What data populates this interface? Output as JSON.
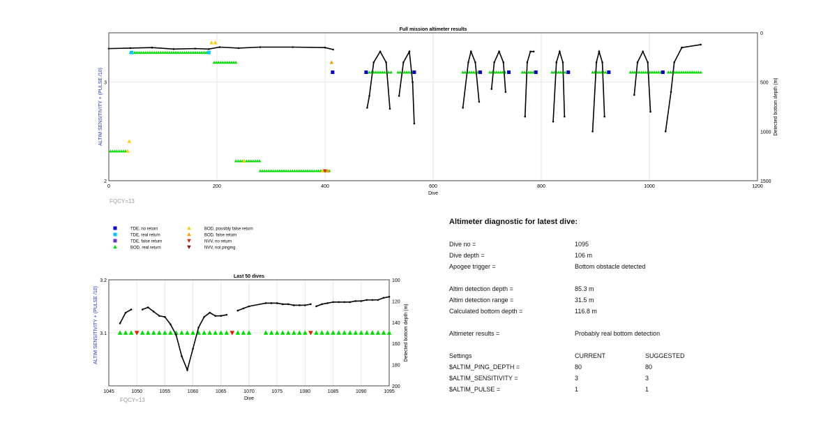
{
  "main_chart": {
    "title": "Full mission altimeter results",
    "xlabel": "Dive",
    "ylabel_left": "ALTIM SENSITIVITY + (PULSE /10)",
    "ylabel_right": "Detected bottom depth (m)",
    "x_ticks": [
      "0",
      "200",
      "400",
      "600",
      "800",
      "1000",
      "1200"
    ],
    "y_left_ticks": [
      "3",
      "2"
    ],
    "y_right_ticks": [
      "0",
      "500",
      "1000",
      "1500"
    ],
    "fqcy_label": "FQCY=13"
  },
  "legend": {
    "items": [
      {
        "label": "TDE, no return",
        "color": "#0000cc",
        "shape": "square"
      },
      {
        "label": "TDE, real return",
        "color": "#00c8ff",
        "shape": "square"
      },
      {
        "label": "TDE, false return",
        "color": "#6633cc",
        "shape": "square"
      },
      {
        "label": "BOD, real return",
        "color": "#00dd00",
        "shape": "triangle-up"
      },
      {
        "label": "BOD, possibly false return",
        "color": "#ffcc00",
        "shape": "triangle-up"
      },
      {
        "label": "BOD, false return",
        "color": "#ff9900",
        "shape": "triangle-up"
      },
      {
        "label": "NVV, no return",
        "color": "#dd2200",
        "shape": "triangle-down"
      },
      {
        "label": "NVV, not pinging",
        "color": "#881100",
        "shape": "triangle-down"
      }
    ]
  },
  "last50_chart": {
    "title": "Last 50 dives",
    "xlabel": "Dive",
    "ylabel_left": "ALTIM SENSITIVITY + (PULSE /10)",
    "ylabel_right": "Detected bottom depth (m)",
    "x_ticks": [
      "1045",
      "1050",
      "1055",
      "1060",
      "1065",
      "1070",
      "1075",
      "1080",
      "1085",
      "1090",
      "1095"
    ],
    "y_left_ticks": [
      "3.2",
      "3.1"
    ],
    "y_right_ticks": [
      "100",
      "120",
      "140",
      "160",
      "180",
      "200"
    ],
    "fqcy_label": "FQCY=13"
  },
  "diagnostic": {
    "title": "Altimeter diagnostic for latest dive:",
    "rows": [
      {
        "k": "Dive no =",
        "v": "1095"
      },
      {
        "k": "Dive depth =",
        "v": "106 m"
      },
      {
        "k": "Apogee trigger =",
        "v": "Bottom obstacle detected"
      },
      {
        "k": "Altim detection depth =",
        "v": "85.3 m"
      },
      {
        "k": "Altim detection range =",
        "v": "31.5 m"
      },
      {
        "k": "Calculated bottom depth =",
        "v": "116.8 m"
      },
      {
        "k": "Altimeter results =",
        "v": "Probably real bottom detection"
      }
    ],
    "settings": {
      "header": {
        "k": "Settings",
        "current": "CURRENT",
        "suggested": "SUGGESTED"
      },
      "rows": [
        {
          "k": "$ALTIM_PING_DEPTH =",
          "current": "80",
          "suggested": "80"
        },
        {
          "k": "$ALTIM_SENSITIVITY =",
          "current": "3",
          "suggested": "3"
        },
        {
          "k": "$ALTIM_PULSE =",
          "current": "1",
          "suggested": "1"
        }
      ]
    }
  },
  "chart_data": [
    {
      "type": "scatter",
      "title": "Full mission altimeter results",
      "xlabel": "Dive",
      "ylabel": "ALTIM SENSITIVITY + (PULSE /10)",
      "y2label": "Detected bottom depth (m)",
      "xlim": [
        0,
        1200
      ],
      "ylim": [
        2,
        3.5
      ],
      "y2lim": [
        1500,
        0
      ],
      "grid": true,
      "series": [
        {
          "name": "BOD, real return",
          "color": "#00dd00",
          "marker": "triangle-up",
          "segments": [
            [
              3,
              32,
              2.3
            ],
            [
              40,
              185,
              3.3
            ],
            [
              195,
              235,
              3.2
            ],
            [
              235,
              280,
              2.2
            ],
            [
              280,
              410,
              2.1
            ],
            [
              478,
              525,
              3.1
            ],
            [
              535,
              565,
              3.1
            ],
            [
              655,
              685,
              3.1
            ],
            [
              705,
              735,
              3.1
            ],
            [
              765,
              790,
              3.1
            ],
            [
              820,
              850,
              3.1
            ],
            [
              895,
              925,
              3.1
            ],
            [
              965,
              1025,
              3.1
            ],
            [
              1035,
              1095,
              3.1
            ]
          ]
        },
        {
          "name": "BOD, possibly false return",
          "color": "#ffcc00",
          "marker": "triangle-up",
          "points": [
            [
              38,
              2.4
            ],
            [
              190,
              3.4
            ],
            [
              197,
              3.4
            ],
            [
              35,
              2.3
            ],
            [
              250,
              2.2
            ],
            [
              395,
              2.1
            ]
          ]
        },
        {
          "name": "BOD, false return",
          "color": "#ff9900",
          "marker": "triangle-up",
          "points": [
            [
              412,
              3.2
            ],
            [
              405,
              2.1
            ]
          ]
        },
        {
          "name": "TDE, no return",
          "color": "#0000cc",
          "marker": "square",
          "points": [
            [
              414,
              3.1
            ],
            [
              476,
              3.1
            ],
            [
              565,
              3.1
            ],
            [
              687,
              3.1
            ],
            [
              740,
              3.1
            ],
            [
              790,
              3.1
            ],
            [
              850,
              3.1
            ],
            [
              925,
              3.1
            ],
            [
              1025,
              3.1
            ]
          ]
        },
        {
          "name": "TDE, real return",
          "color": "#00c8ff",
          "marker": "square",
          "points": [
            [
              42,
              3.3
            ],
            [
              185,
              3.3
            ]
          ]
        },
        {
          "name": "NVV, no return",
          "color": "#dd2200",
          "marker": "triangle-down",
          "points": [
            [
              400,
              2.1
            ]
          ]
        },
        {
          "name": "Detected bottom depth (m)",
          "axis": "right",
          "color": "#000000",
          "marker": "dot",
          "segments_xy": [
            [
              [
                0,
                160
              ],
              [
                40,
                155
              ],
              [
                80,
                150
              ],
              [
                120,
                165
              ],
              [
                160,
                160
              ],
              [
                185,
                165
              ],
              [
                205,
                145
              ],
              [
                240,
                155
              ],
              [
                280,
                145
              ],
              [
                340,
                145
              ],
              [
                400,
                150
              ],
              [
                415,
                170
              ]
            ],
            [
              [
                478,
                760
              ],
              [
                482,
                640
              ],
              [
                490,
                300
              ],
              [
                502,
                190
              ],
              [
                513,
                300
              ],
              [
                520,
                770
              ]
            ],
            [
              [
                537,
                640
              ],
              [
                545,
                300
              ],
              [
                556,
                190
              ],
              [
                562,
                500
              ],
              [
                565,
                920
              ]
            ],
            [
              [
                655,
                760
              ],
              [
                665,
                300
              ],
              [
                670,
                190
              ],
              [
                678,
                300
              ],
              [
                685,
                700
              ]
            ],
            [
              [
                708,
                570
              ],
              [
                713,
                300
              ],
              [
                722,
                190
              ],
              [
                730,
                300
              ],
              [
                734,
                600
              ]
            ],
            [
              [
                770,
                850
              ],
              [
                774,
                300
              ],
              [
                780,
                190
              ],
              [
                786,
                190
              ]
            ],
            [
              [
                822,
                900
              ],
              [
                828,
                300
              ],
              [
                834,
                190
              ],
              [
                840,
                300
              ],
              [
                843,
                850
              ]
            ],
            [
              [
                895,
                1000
              ],
              [
                902,
                300
              ],
              [
                907,
                190
              ],
              [
                913,
                300
              ],
              [
                917,
                850
              ]
            ],
            [
              [
                972,
                630
              ],
              [
                978,
                300
              ],
              [
                988,
                190
              ],
              [
                997,
                300
              ],
              [
                1002,
                800
              ]
            ],
            [
              [
                1030,
                1000
              ],
              [
                1040,
                600
              ],
              [
                1046,
                300
              ],
              [
                1060,
                150
              ],
              [
                1095,
                120
              ]
            ]
          ]
        }
      ]
    },
    {
      "type": "scatter",
      "title": "Last 50 dives",
      "xlabel": "Dive",
      "ylabel": "ALTIM SENSITIVITY + (PULSE /10)",
      "y2label": "Detected bottom depth (m)",
      "xlim": [
        1045,
        1095
      ],
      "ylim": [
        3.0,
        3.2
      ],
      "y2lim": [
        200,
        100
      ],
      "grid": true,
      "series": [
        {
          "name": "BOD, real return",
          "color": "#00dd00",
          "marker": "triangle-up",
          "x": [
            1047,
            1048,
            1049,
            1051,
            1052,
            1053,
            1054,
            1055,
            1056,
            1057,
            1058,
            1059,
            1060,
            1061,
            1062,
            1063,
            1064,
            1065,
            1066,
            1068,
            1069,
            1070,
            1073,
            1074,
            1075,
            1076,
            1077,
            1078,
            1079,
            1080,
            1082,
            1083,
            1084,
            1085,
            1086,
            1087,
            1088,
            1089,
            1090,
            1091,
            1092,
            1093,
            1094,
            1095
          ],
          "y": 3.1
        },
        {
          "name": "NVV, no return",
          "color": "#dd2200",
          "marker": "triangle-down",
          "x": [
            1050,
            1067,
            1081
          ],
          "y": 3.1
        },
        {
          "name": "Detected bottom depth (m)",
          "axis": "right",
          "color": "#000000",
          "marker": "dot",
          "segments_xy": [
            [
              [
                1047,
                141
              ],
              [
                1048,
                131
              ],
              [
                1049,
                128
              ]
            ],
            [
              [
                1051,
                128
              ],
              [
                1052,
                126
              ],
              [
                1053,
                130
              ],
              [
                1054,
                134
              ],
              [
                1055,
                135
              ],
              [
                1056,
                142
              ],
              [
                1057,
                152
              ],
              [
                1058,
                172
              ],
              [
                1059,
                185
              ],
              [
                1060,
                165
              ],
              [
                1061,
                145
              ],
              [
                1062,
                135
              ],
              [
                1063,
                131
              ],
              [
                1064,
                134
              ],
              [
                1065,
                134
              ],
              [
                1066,
                133
              ]
            ],
            [
              [
                1068,
                129
              ],
              [
                1069,
                127
              ],
              [
                1070,
                125
              ],
              [
                1073,
                122
              ],
              [
                1074,
                122
              ],
              [
                1075,
                122
              ],
              [
                1076,
                123
              ],
              [
                1077,
                123
              ],
              [
                1078,
                124
              ],
              [
                1079,
                124
              ],
              [
                1080,
                124
              ],
              [
                1081,
                123
              ]
            ],
            [
              [
                1082,
                125
              ],
              [
                1083,
                123
              ],
              [
                1084,
                122
              ],
              [
                1085,
                121
              ],
              [
                1086,
                121
              ],
              [
                1087,
                121
              ],
              [
                1088,
                121
              ],
              [
                1089,
                120
              ],
              [
                1090,
                120
              ],
              [
                1091,
                119
              ],
              [
                1092,
                119
              ],
              [
                1093,
                119
              ],
              [
                1094,
                117
              ],
              [
                1095,
                116
              ]
            ]
          ]
        }
      ]
    }
  ]
}
